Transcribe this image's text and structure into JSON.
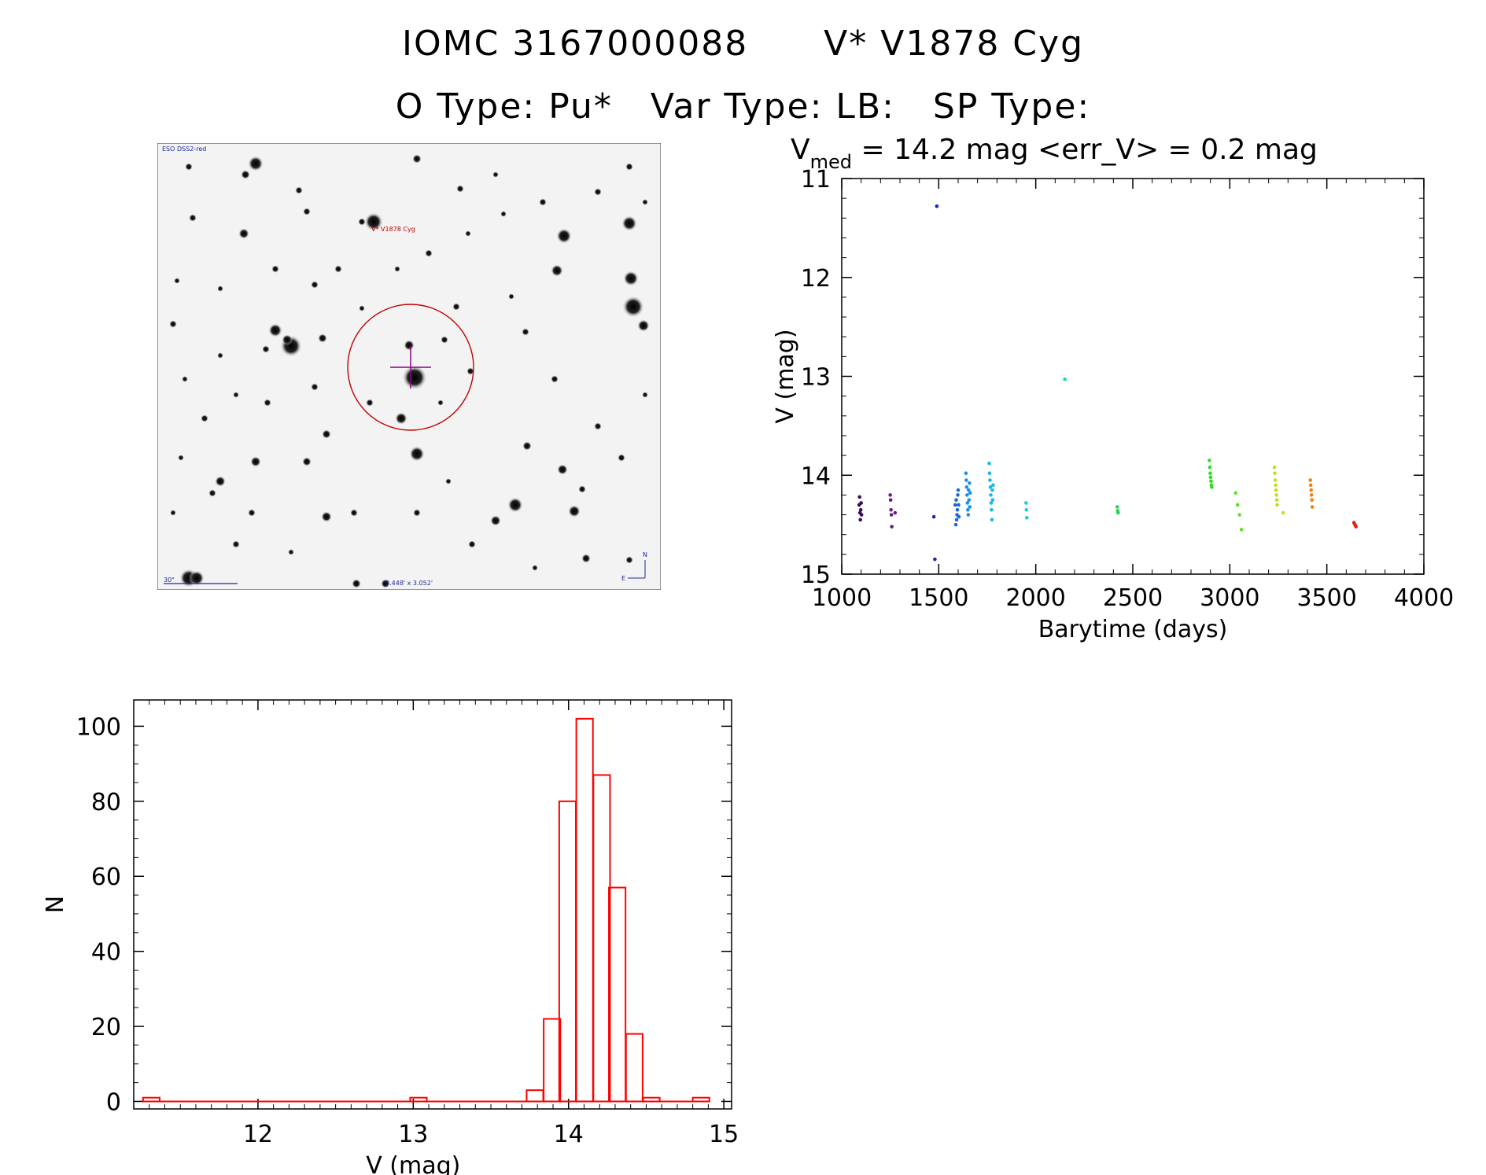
{
  "header": {
    "object_id": "IOMC 3167000088",
    "star_name": "V* V1878 Cyg",
    "o_type": "O Type: Pu*",
    "var_type": "Var Type: LB:",
    "sp_type": "SP Type:"
  },
  "finder": {
    "survey_label": "ESO DSS2-red",
    "target_label": "V* V1878 Cyg",
    "scale_label": "30\"",
    "fov_label": "3.448' x 3.052'",
    "north_label": "N",
    "east_label": "E",
    "circle_color": "#c00000",
    "cross_color": "#8a008a"
  },
  "chart_data": [
    {
      "type": "scatter",
      "title_parts": {
        "v": "V",
        "sub": "med",
        "rest": " = 14.2 mag <err_V> = 0.2 mag"
      },
      "xlabel": "Barytime (days)",
      "ylabel": "V (mag)",
      "xlim": [
        1000,
        4000
      ],
      "ylim": [
        15,
        11
      ],
      "y_inverted": true,
      "xticks": [
        1000,
        1500,
        2000,
        2500,
        3000,
        3500,
        4000
      ],
      "yticks": [
        11,
        12,
        13,
        14,
        15
      ],
      "grid": false,
      "point_color_scheme": "rainbow by time",
      "groups": [
        {
          "color": "#3a0a5a",
          "x": [
            1090,
            1092,
            1094,
            1096,
            1098,
            1100,
            1102
          ],
          "y": [
            14.3,
            14.22,
            14.38,
            14.45,
            14.35,
            14.28,
            14.4
          ]
        },
        {
          "color": "#6a1a8a",
          "x": [
            1250,
            1252,
            1254,
            1256,
            1258,
            1275
          ],
          "y": [
            14.2,
            14.25,
            14.35,
            14.4,
            14.52,
            14.38
          ]
        },
        {
          "color": "#1a2ab0",
          "x": [
            1475,
            1480,
            1490
          ],
          "y": [
            14.42,
            14.85,
            11.28
          ]
        },
        {
          "color": "#1a6ad8",
          "x": [
            1585,
            1588,
            1590,
            1592,
            1594,
            1596,
            1598,
            1600,
            1602,
            1604
          ],
          "y": [
            14.3,
            14.5,
            14.25,
            14.45,
            14.4,
            14.35,
            14.2,
            14.15,
            14.3,
            14.42
          ]
        },
        {
          "color": "#1a90e8",
          "x": [
            1640,
            1642,
            1644,
            1646,
            1648,
            1650,
            1652,
            1654,
            1656,
            1658,
            1660,
            1662
          ],
          "y": [
            13.98,
            14.05,
            14.12,
            14.2,
            14.28,
            14.35,
            14.4,
            14.15,
            14.25,
            14.08,
            14.32,
            14.18
          ]
        },
        {
          "color": "#1ab8e8",
          "x": [
            1760,
            1762,
            1764,
            1766,
            1768,
            1770,
            1772,
            1774,
            1776,
            1778,
            1780
          ],
          "y": [
            13.88,
            13.98,
            14.05,
            14.12,
            14.2,
            14.28,
            14.35,
            14.45,
            14.15,
            14.25,
            14.1
          ]
        },
        {
          "color": "#1ad0c8",
          "x": [
            1950,
            1952,
            1954
          ],
          "y": [
            14.28,
            14.35,
            14.43
          ]
        },
        {
          "color": "#1ae090",
          "x": [
            2150
          ],
          "y": [
            13.03
          ]
        },
        {
          "color": "#2ad050",
          "x": [
            2420,
            2422,
            2424
          ],
          "y": [
            14.32,
            14.36,
            14.38
          ]
        },
        {
          "color": "#2ae020",
          "x": [
            2895,
            2897,
            2899,
            2901,
            2903,
            2905,
            2907
          ],
          "y": [
            13.85,
            13.92,
            13.98,
            14.02,
            14.06,
            14.1,
            14.12
          ]
        },
        {
          "color": "#60e020",
          "x": [
            3030,
            3040,
            3050,
            3060
          ],
          "y": [
            14.18,
            14.3,
            14.4,
            14.55
          ]
        },
        {
          "color": "#c0e020",
          "x": [
            3230,
            3232,
            3234,
            3236,
            3238,
            3240,
            3242,
            3244,
            3275
          ],
          "y": [
            13.92,
            13.98,
            14.05,
            14.1,
            14.15,
            14.2,
            14.25,
            14.3,
            14.38
          ]
        },
        {
          "color": "#f08010",
          "x": [
            3415,
            3417,
            3419,
            3421,
            3423,
            3425
          ],
          "y": [
            14.05,
            14.1,
            14.15,
            14.2,
            14.25,
            14.32
          ]
        },
        {
          "color": "#e02010",
          "x": [
            3640,
            3645,
            3650
          ],
          "y": [
            14.48,
            14.5,
            14.52
          ]
        }
      ]
    },
    {
      "type": "bar",
      "xlabel": "V (mag)",
      "ylabel": "N",
      "xlim": [
        11.2,
        15.05
      ],
      "ylim": [
        -2,
        107
      ],
      "xticks": [
        12,
        13,
        14,
        15
      ],
      "yticks": [
        0,
        20,
        40,
        60,
        80,
        100
      ],
      "bar_color": "#ff0000",
      "bin_width": 0.107,
      "bins": [
        {
          "left": 11.26,
          "value": 1
        },
        {
          "left": 12.98,
          "value": 1
        },
        {
          "left": 13.73,
          "value": 3
        },
        {
          "left": 13.84,
          "value": 22
        },
        {
          "left": 13.94,
          "value": 80
        },
        {
          "left": 14.05,
          "value": 102
        },
        {
          "left": 14.16,
          "value": 87
        },
        {
          "left": 14.26,
          "value": 57
        },
        {
          "left": 14.37,
          "value": 18
        },
        {
          "left": 14.48,
          "value": 1
        },
        {
          "left": 14.8,
          "value": 1
        }
      ]
    }
  ]
}
